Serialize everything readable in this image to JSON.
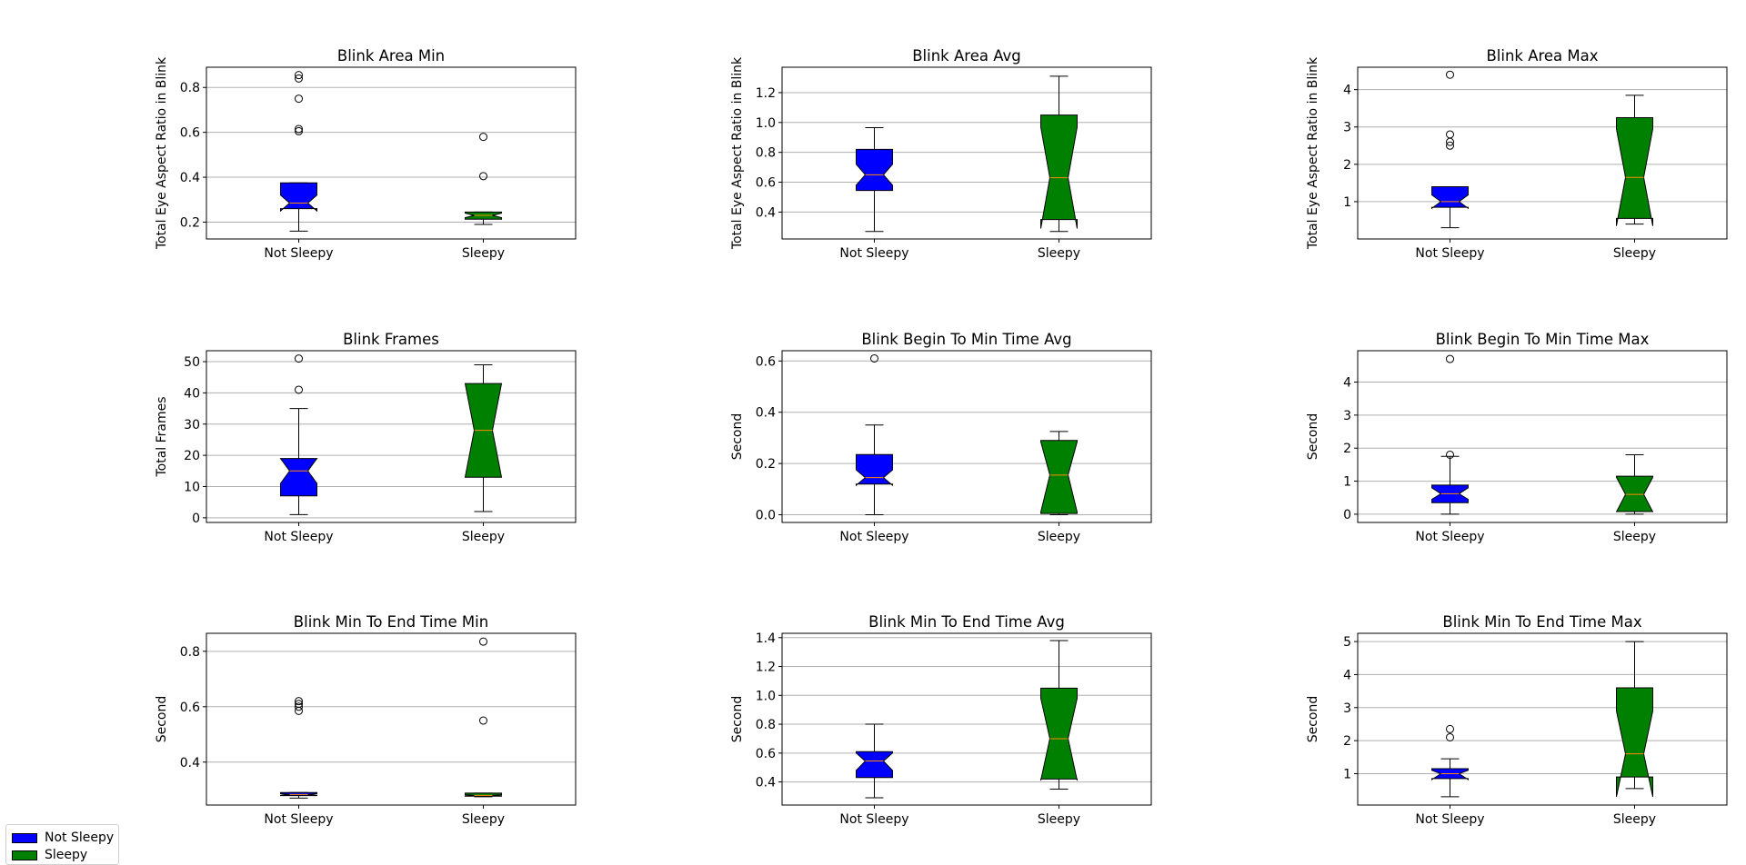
{
  "colors": {
    "not_sleepy": "#0000ff",
    "sleepy": "#008000",
    "median": "#ff8c00",
    "grid": "#b0b0b0"
  },
  "legend": {
    "placement": "bottom-left",
    "items": [
      {
        "label": "Not Sleepy"
      },
      {
        "label": "Sleepy"
      }
    ]
  },
  "chart_data": [
    {
      "type": "box",
      "title": "Blink Area Min",
      "ylabel": "Total Eye Aspect Ratio in Blink",
      "categories": [
        "Not Sleepy",
        "Sleepy"
      ],
      "ylim": [
        0.125,
        0.89
      ],
      "yticks": [
        0.2,
        0.4,
        0.6,
        0.8
      ],
      "yticklabels": [
        "0.2",
        "0.4",
        "0.6",
        "0.8"
      ],
      "grid": true,
      "boxes": [
        {
          "q1": 0.26,
          "median": 0.285,
          "q3": 0.375,
          "whislo": 0.16,
          "whishi": 0.375,
          "notch_lo": 0.25,
          "notch_hi": 0.32,
          "fliers": [
            0.605,
            0.615,
            0.75,
            0.84,
            0.855
          ]
        },
        {
          "q1": 0.213,
          "median": 0.23,
          "q3": 0.245,
          "whislo": 0.19,
          "whishi": 0.245,
          "notch_lo": 0.22,
          "notch_hi": 0.24,
          "fliers": [
            0.405,
            0.58
          ]
        }
      ]
    },
    {
      "type": "box",
      "title": "Blink Area Avg",
      "ylabel": "Total Eye Aspect Ratio in Blink",
      "categories": [
        "Not Sleepy",
        "Sleepy"
      ],
      "ylim": [
        0.22,
        1.37
      ],
      "yticks": [
        0.4,
        0.6,
        0.8,
        1.0,
        1.2
      ],
      "yticklabels": [
        "0.4",
        "0.6",
        "0.8",
        "1.0",
        "1.2"
      ],
      "grid": true,
      "boxes": [
        {
          "q1": 0.545,
          "median": 0.65,
          "q3": 0.82,
          "whislo": 0.27,
          "whishi": 0.965,
          "notch_lo": 0.58,
          "notch_hi": 0.72,
          "fliers": []
        },
        {
          "q1": 0.35,
          "median": 0.63,
          "q3": 1.05,
          "whislo": 0.27,
          "whishi": 1.31,
          "notch_lo": 0.29,
          "notch_hi": 0.97,
          "fliers": []
        }
      ]
    },
    {
      "type": "box",
      "title": "Blink Area Max",
      "ylabel": "Total Eye Aspect Ratio in Blink",
      "categories": [
        "Not Sleepy",
        "Sleepy"
      ],
      "ylim": [
        0.0,
        4.6
      ],
      "yticks": [
        1,
        2,
        3,
        4
      ],
      "yticklabels": [
        "1",
        "2",
        "3",
        "4"
      ],
      "grid": true,
      "boxes": [
        {
          "q1": 0.85,
          "median": 1.0,
          "q3": 1.4,
          "whislo": 0.3,
          "whishi": 1.4,
          "notch_lo": 0.82,
          "notch_hi": 1.18,
          "fliers": [
            2.5,
            2.6,
            2.8,
            4.4
          ]
        },
        {
          "q1": 0.55,
          "median": 1.65,
          "q3": 3.25,
          "whislo": 0.4,
          "whishi": 3.85,
          "notch_lo": 0.35,
          "notch_hi": 2.95,
          "fliers": []
        }
      ]
    },
    {
      "type": "box",
      "title": "Blink Frames",
      "ylabel": "Total Frames",
      "categories": [
        "Not Sleepy",
        "Sleepy"
      ],
      "ylim": [
        -1.5,
        53.5
      ],
      "yticks": [
        0,
        10,
        20,
        30,
        40,
        50
      ],
      "yticklabels": [
        "0",
        "10",
        "20",
        "30",
        "40",
        "50"
      ],
      "grid": true,
      "boxes": [
        {
          "q1": 7,
          "median": 15,
          "q3": 19,
          "whislo": 1,
          "whishi": 35,
          "notch_lo": 11,
          "notch_hi": 19,
          "fliers": [
            41,
            51
          ]
        },
        {
          "q1": 13,
          "median": 28,
          "q3": 43,
          "whislo": 2,
          "whishi": 49,
          "notch_lo": 13,
          "notch_hi": 43,
          "fliers": []
        }
      ]
    },
    {
      "type": "box",
      "title": "Blink Begin To Min Time Avg",
      "ylabel": "Second",
      "categories": [
        "Not Sleepy",
        "Sleepy"
      ],
      "ylim": [
        -0.03,
        0.64
      ],
      "yticks": [
        0.0,
        0.2,
        0.4,
        0.6
      ],
      "yticklabels": [
        "0.0",
        "0.2",
        "0.4",
        "0.6"
      ],
      "grid": true,
      "boxes": [
        {
          "q1": 0.12,
          "median": 0.145,
          "q3": 0.235,
          "whislo": 0.0,
          "whishi": 0.35,
          "notch_lo": 0.115,
          "notch_hi": 0.175,
          "fliers": [
            0.61
          ]
        },
        {
          "q1": 0.005,
          "median": 0.155,
          "q3": 0.29,
          "whislo": 0.0,
          "whishi": 0.325,
          "notch_lo": 0.01,
          "notch_hi": 0.285,
          "fliers": []
        }
      ]
    },
    {
      "type": "box",
      "title": "Blink Begin To Min Time Max",
      "ylabel": "Second",
      "categories": [
        "Not Sleepy",
        "Sleepy"
      ],
      "ylim": [
        -0.25,
        4.95
      ],
      "yticks": [
        0,
        1,
        2,
        3,
        4
      ],
      "yticklabels": [
        "0",
        "1",
        "2",
        "3",
        "4"
      ],
      "grid": true,
      "boxes": [
        {
          "q1": 0.35,
          "median": 0.62,
          "q3": 0.88,
          "whislo": 0.0,
          "whishi": 1.75,
          "notch_lo": 0.45,
          "notch_hi": 0.8,
          "fliers": [
            1.8,
            4.7
          ]
        },
        {
          "q1": 0.08,
          "median": 0.6,
          "q3": 1.15,
          "whislo": 0.0,
          "whishi": 1.8,
          "notch_lo": 0.07,
          "notch_hi": 1.12,
          "fliers": []
        }
      ]
    },
    {
      "type": "box",
      "title": "Blink Min To End Time Min",
      "ylabel": "Second",
      "categories": [
        "Not Sleepy",
        "Sleepy"
      ],
      "ylim": [
        0.245,
        0.865
      ],
      "yticks": [
        0.4,
        0.6,
        0.8
      ],
      "yticklabels": [
        "0.4",
        "0.6",
        "0.8"
      ],
      "grid": true,
      "boxes": [
        {
          "q1": 0.279,
          "median": 0.283,
          "q3": 0.29,
          "whislo": 0.27,
          "whishi": 0.29,
          "notch_lo": 0.28,
          "notch_hi": 0.286,
          "fliers": [
            0.585,
            0.6,
            0.61,
            0.62
          ]
        },
        {
          "q1": 0.277,
          "median": 0.28,
          "q3": 0.288,
          "whislo": 0.275,
          "whishi": 0.288,
          "notch_lo": 0.278,
          "notch_hi": 0.282,
          "fliers": [
            0.55,
            0.835
          ]
        }
      ]
    },
    {
      "type": "box",
      "title": "Blink Min To End Time Avg",
      "ylabel": "Second",
      "categories": [
        "Not Sleepy",
        "Sleepy"
      ],
      "ylim": [
        0.24,
        1.43
      ],
      "yticks": [
        0.4,
        0.6,
        0.8,
        1.0,
        1.2,
        1.4
      ],
      "yticklabels": [
        "0.4",
        "0.6",
        "0.8",
        "1.0",
        "1.2",
        "1.4"
      ],
      "grid": true,
      "boxes": [
        {
          "q1": 0.43,
          "median": 0.545,
          "q3": 0.61,
          "whislo": 0.29,
          "whishi": 0.8,
          "notch_lo": 0.48,
          "notch_hi": 0.6,
          "fliers": []
        },
        {
          "q1": 0.42,
          "median": 0.7,
          "q3": 1.05,
          "whislo": 0.35,
          "whishi": 1.38,
          "notch_lo": 0.41,
          "notch_hi": 0.98,
          "fliers": []
        }
      ]
    },
    {
      "type": "box",
      "title": "Blink Min To End Time Max",
      "ylabel": "Second",
      "categories": [
        "Not Sleepy",
        "Sleepy"
      ],
      "ylim": [
        0.05,
        5.25
      ],
      "yticks": [
        1,
        2,
        3,
        4,
        5
      ],
      "yticklabels": [
        "1",
        "2",
        "3",
        "4",
        "5"
      ],
      "grid": true,
      "boxes": [
        {
          "q1": 0.85,
          "median": 1.0,
          "q3": 1.15,
          "whislo": 0.3,
          "whishi": 1.45,
          "notch_lo": 0.82,
          "notch_hi": 1.1,
          "fliers": [
            2.1,
            2.35
          ]
        },
        {
          "q1": 0.9,
          "median": 1.6,
          "q3": 3.6,
          "whislo": 0.55,
          "whishi": 5.0,
          "notch_lo": 0.3,
          "notch_hi": 2.9,
          "fliers": []
        }
      ]
    }
  ]
}
